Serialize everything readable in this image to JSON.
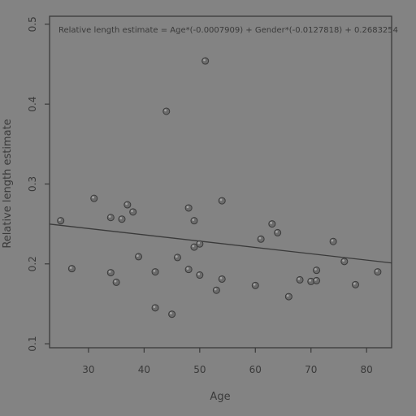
{
  "chart_data": {
    "type": "scatter",
    "title": "",
    "annotation": "Relative length estimate = Age*(-0.0007909) + Gender*(-0.0127818) + 0.2683254",
    "xlabel": "Age",
    "ylabel": "Relative length estimate",
    "xlim": [
      23,
      84.5
    ],
    "ylim": [
      0.095,
      0.51
    ],
    "xticks": [
      30,
      40,
      50,
      60,
      70,
      80
    ],
    "yticks": [
      0.1,
      0.2,
      0.3,
      0.4,
      0.5
    ],
    "ytick_labels": [
      "0.1",
      "0.2",
      "0.3",
      "0.4",
      "0.5"
    ],
    "grid": false,
    "legend": "none",
    "regression_line": {
      "x": [
        23,
        84.5
      ],
      "y": [
        0.2498,
        0.2012
      ]
    },
    "points": [
      {
        "x": 25,
        "y": 0.254
      },
      {
        "x": 27,
        "y": 0.194
      },
      {
        "x": 31,
        "y": 0.282
      },
      {
        "x": 34,
        "y": 0.258
      },
      {
        "x": 34,
        "y": 0.189
      },
      {
        "x": 35,
        "y": 0.177
      },
      {
        "x": 36,
        "y": 0.256
      },
      {
        "x": 37,
        "y": 0.274
      },
      {
        "x": 38,
        "y": 0.265
      },
      {
        "x": 39,
        "y": 0.209
      },
      {
        "x": 42,
        "y": 0.19
      },
      {
        "x": 42,
        "y": 0.145
      },
      {
        "x": 44,
        "y": 0.391
      },
      {
        "x": 45,
        "y": 0.137
      },
      {
        "x": 46,
        "y": 0.208
      },
      {
        "x": 48,
        "y": 0.27
      },
      {
        "x": 48,
        "y": 0.193
      },
      {
        "x": 49,
        "y": 0.254
      },
      {
        "x": 49,
        "y": 0.221
      },
      {
        "x": 50,
        "y": 0.225
      },
      {
        "x": 50,
        "y": 0.186
      },
      {
        "x": 51,
        "y": 0.454
      },
      {
        "x": 53,
        "y": 0.167
      },
      {
        "x": 54,
        "y": 0.279
      },
      {
        "x": 54,
        "y": 0.181
      },
      {
        "x": 60,
        "y": 0.173
      },
      {
        "x": 61,
        "y": 0.231
      },
      {
        "x": 63,
        "y": 0.25
      },
      {
        "x": 64,
        "y": 0.239
      },
      {
        "x": 66,
        "y": 0.159
      },
      {
        "x": 68,
        "y": 0.18
      },
      {
        "x": 70,
        "y": 0.178
      },
      {
        "x": 71,
        "y": 0.192
      },
      {
        "x": 71,
        "y": 0.179
      },
      {
        "x": 74,
        "y": 0.228
      },
      {
        "x": 76,
        "y": 0.203
      },
      {
        "x": 78,
        "y": 0.174
      },
      {
        "x": 82,
        "y": 0.19
      }
    ],
    "colors": {
      "background": "#838383",
      "ink": "#3a3a3a",
      "point_fill": "#6c6c6c",
      "point_highlight": "#a4a4a4"
    }
  }
}
